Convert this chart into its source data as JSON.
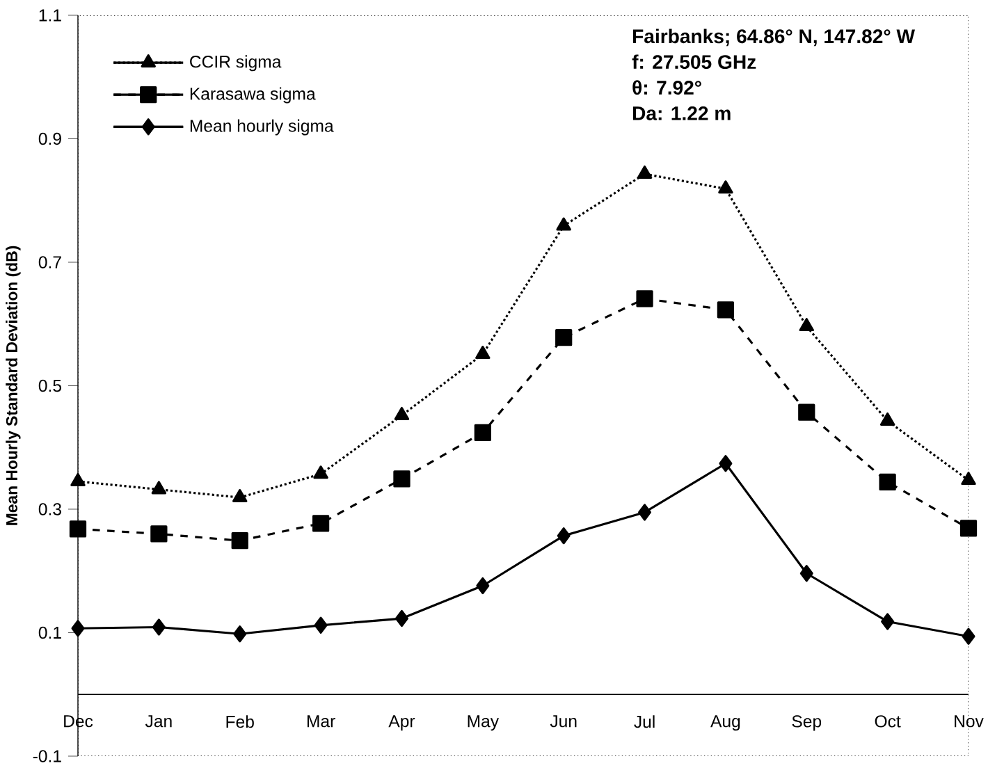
{
  "chart_data": {
    "type": "line",
    "ylabel": "Mean Hourly Standard Deviation (dB)",
    "categories": [
      "Dec",
      "Jan",
      "Feb",
      "Mar",
      "Apr",
      "May",
      "Jun",
      "Jul",
      "Aug",
      "Sep",
      "Oct",
      "Nov"
    ],
    "series": [
      {
        "name": "CCIR sigma",
        "color": "#000000",
        "marker": "triangle",
        "line_style": "dotted",
        "values": [
          0.345,
          0.332,
          0.319,
          0.357,
          0.452,
          0.551,
          0.759,
          0.843,
          0.819,
          0.596,
          0.443,
          0.347
        ]
      },
      {
        "name": "Karasawa sigma",
        "color": "#000000",
        "marker": "square",
        "line_style": "dashed",
        "values": [
          0.268,
          0.26,
          0.249,
          0.277,
          0.349,
          0.424,
          0.578,
          0.641,
          0.623,
          0.457,
          0.344,
          0.269
        ]
      },
      {
        "name": "Mean hourly sigma",
        "color": "#000000",
        "marker": "diamond",
        "line_style": "solid",
        "values": [
          0.107,
          0.109,
          0.098,
          0.112,
          0.123,
          0.176,
          0.257,
          0.295,
          0.374,
          0.196,
          0.118,
          0.094
        ]
      }
    ],
    "ylim": [
      -0.1,
      1.1
    ],
    "yticks": [
      -0.1,
      0.1,
      0.3,
      0.5,
      0.7,
      0.9,
      1.1
    ],
    "legend": "top left",
    "grid": false,
    "annotations": [
      "Fairbanks; 64.86° N, 147.82° W",
      "f: 27.505 GHz",
      "θ: 7.92°",
      "Da: 1.22 m"
    ]
  }
}
